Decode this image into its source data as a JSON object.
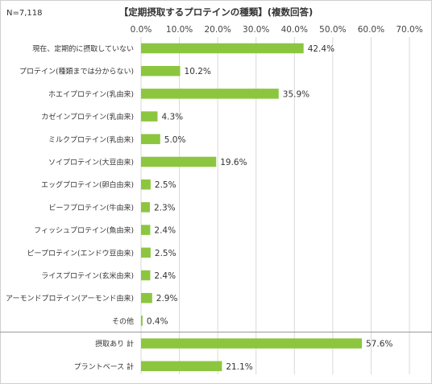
{
  "chart_data": {
    "type": "bar",
    "orientation": "horizontal",
    "title": "【定期摂取するプロテインの種類】(複数回答)",
    "sample_label": "N=7,118",
    "x_ticks": [
      "0.0%",
      "10.0%",
      "20.0%",
      "30.0%",
      "40.0%",
      "50.0%",
      "60.0%",
      "70.0%"
    ],
    "xlim": [
      0,
      70
    ],
    "grid": true,
    "bar_color": "#8cc63f",
    "categories": [
      "現在、定期的に摂取していない",
      "プロテイン(種類までは分からない)",
      "ホエイプロテイン(乳由来)",
      "カゼインプロテイン(乳由来)",
      "ミルクプロテイン(乳由来)",
      "ソイプロテイン(大豆由来)",
      "エッグプロテイン(卵白由来)",
      "ビーフプロテイン(牛由来)",
      "フィッシュプロテイン(魚由来)",
      "ピープロテイン(エンドウ豆由来)",
      "ライスプロテイン(玄米由来)",
      "アーモンドプロテイン(アーモンド由来)",
      "その他",
      "摂取あり 計",
      "プラントベース 計"
    ],
    "values": [
      42.4,
      10.2,
      35.9,
      4.3,
      5.0,
      19.6,
      2.5,
      2.3,
      2.4,
      2.5,
      2.4,
      2.9,
      0.4,
      57.6,
      21.1
    ],
    "value_labels": [
      "42.4%",
      "10.2%",
      "35.9%",
      "4.3%",
      "5.0%",
      "19.6%",
      "2.5%",
      "2.3%",
      "2.4%",
      "2.5%",
      "2.4%",
      "2.9%",
      "0.4%",
      "57.6%",
      "21.1%"
    ]
  }
}
